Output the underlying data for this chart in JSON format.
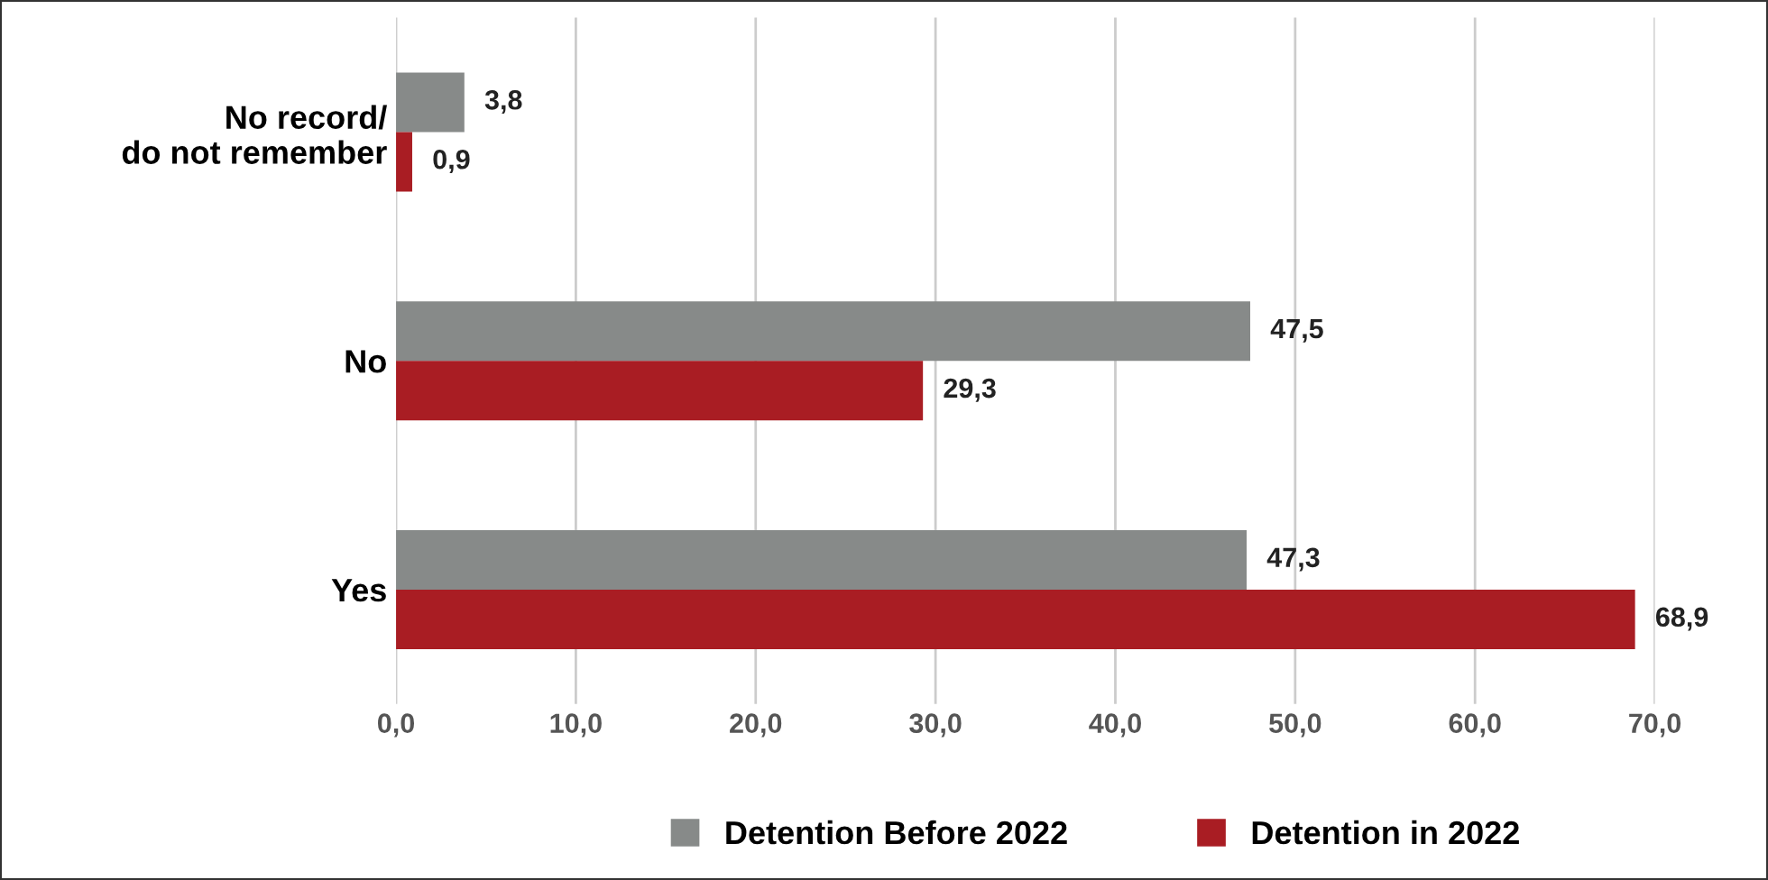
{
  "chart_data": {
    "type": "bar",
    "orientation": "horizontal",
    "categories": [
      "No record/\ndo not remember",
      "No",
      "Yes"
    ],
    "series": [
      {
        "name": "Detention Before 2022",
        "color": "#878a89",
        "values": [
          3.8,
          47.5,
          47.3
        ],
        "value_labels": [
          "3,8",
          "47,5",
          "47,3"
        ]
      },
      {
        "name": "Detention in 2022",
        "color": "#a91d23",
        "values": [
          0.9,
          29.3,
          68.9
        ],
        "value_labels": [
          "0,9",
          "29,3",
          "68,9"
        ]
      }
    ],
    "xlim": [
      0,
      70
    ],
    "xticks": [
      {
        "value": 0,
        "label": "0,0"
      },
      {
        "value": 10,
        "label": "10,0"
      },
      {
        "value": 20,
        "label": "20,0"
      },
      {
        "value": 30,
        "label": "30,0"
      },
      {
        "value": 40,
        "label": "40,0"
      },
      {
        "value": 50,
        "label": "50,0"
      },
      {
        "value": 60,
        "label": "60,0"
      },
      {
        "value": 70,
        "label": "70,0"
      }
    ],
    "grid": "x",
    "legend": "bottom"
  }
}
